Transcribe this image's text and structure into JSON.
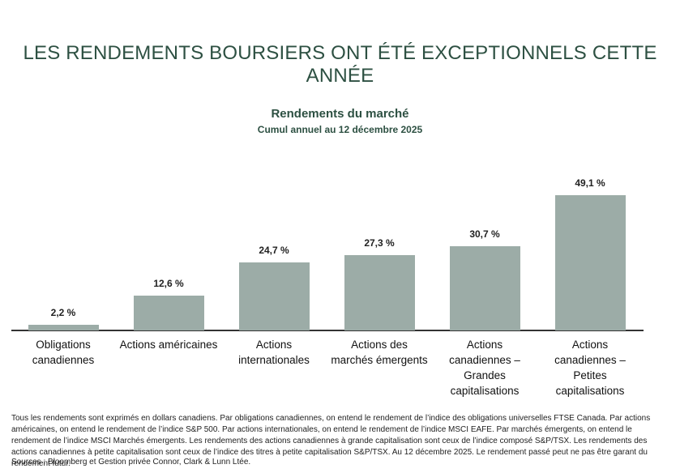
{
  "chart_data": {
    "type": "bar",
    "title": "LES RENDEMENTS BOURSIERS ONT ÉTÉ EXCEPTIONNELS CETTE ANNÉE",
    "subtitle": "Rendements du marché",
    "subtitle2": "Cumul annuel au 12 décembre 2025",
    "categories": [
      "Obligations canadiennes",
      "Actions américaines",
      "Actions internationales",
      "Actions des marchés émergents",
      "Actions canadiennes – Grandes capitalisations",
      "Actions canadiennes – Petites capitalisations"
    ],
    "values": [
      2.2,
      12.6,
      24.7,
      27.3,
      30.7,
      49.1
    ],
    "value_labels": [
      "2,2 %",
      "12,6 %",
      "24,7 %",
      "27,3 %",
      "30,7 %",
      "49,1 %"
    ],
    "color": "#9cacA7",
    "footnote": "Tous les rendements sont exprimés en dollars canadiens. Par obligations canadiennes, on entend le rendement de l’indice des obligations universelles FTSE Canada. Par actions américaines, on entend le rendement de l’indice S&P 500. Par actions internationales, on entend le rendement de l’indice MSCI EAFE. Par marchés émergents, on entend le rendement de l’indice MSCI Marchés émergents. Les rendements des actions canadiennes à grande capitalisation sont ceux de l’indice composé S&P/TSX. Les rendements des actions canadiennes à petite capitalisation sont ceux de l’indice des titres à petite capitalisation S&P/TSX. Au 12 décembre 2025. Le rendement passé peut ne pas être garant du rendement futur.",
    "source": "Sources : Bloomberg et Gestion privée Connor, Clark & Lunn Ltée."
  }
}
